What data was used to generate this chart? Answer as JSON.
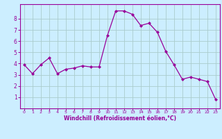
{
  "x": [
    0,
    1,
    2,
    3,
    4,
    5,
    6,
    7,
    8,
    9,
    10,
    11,
    12,
    13,
    14,
    15,
    16,
    17,
    18,
    19,
    20,
    21,
    22,
    23
  ],
  "y": [
    3.9,
    3.1,
    3.9,
    4.5,
    3.1,
    3.5,
    3.6,
    3.8,
    3.7,
    3.7,
    6.5,
    8.7,
    8.7,
    8.4,
    7.4,
    7.6,
    6.8,
    5.1,
    3.9,
    2.6,
    2.8,
    2.6,
    2.4,
    0.8
  ],
  "line_color": "#990099",
  "marker": "D",
  "marker_size": 2.0,
  "bg_color": "#cceeff",
  "grid_color": "#aacccc",
  "xlabel": "Windchill (Refroidissement éolien,°C)",
  "xlabel_color": "#990099",
  "tick_color": "#990099",
  "spine_color": "#990099",
  "xlim": [
    -0.5,
    23.5
  ],
  "ylim": [
    0,
    9.3
  ],
  "yticks": [
    1,
    2,
    3,
    4,
    5,
    6,
    7,
    8
  ],
  "xticks": [
    0,
    1,
    2,
    3,
    4,
    5,
    6,
    7,
    8,
    9,
    10,
    11,
    12,
    13,
    14,
    15,
    16,
    17,
    18,
    19,
    20,
    21,
    22,
    23
  ],
  "xtick_labels": [
    "0",
    "1",
    "2",
    "3",
    "4",
    "5",
    "6",
    "7",
    "8",
    "9",
    "10",
    "11",
    "12",
    "13",
    "14",
    "15",
    "16",
    "17",
    "18",
    "19",
    "20",
    "21",
    "22",
    "23"
  ]
}
